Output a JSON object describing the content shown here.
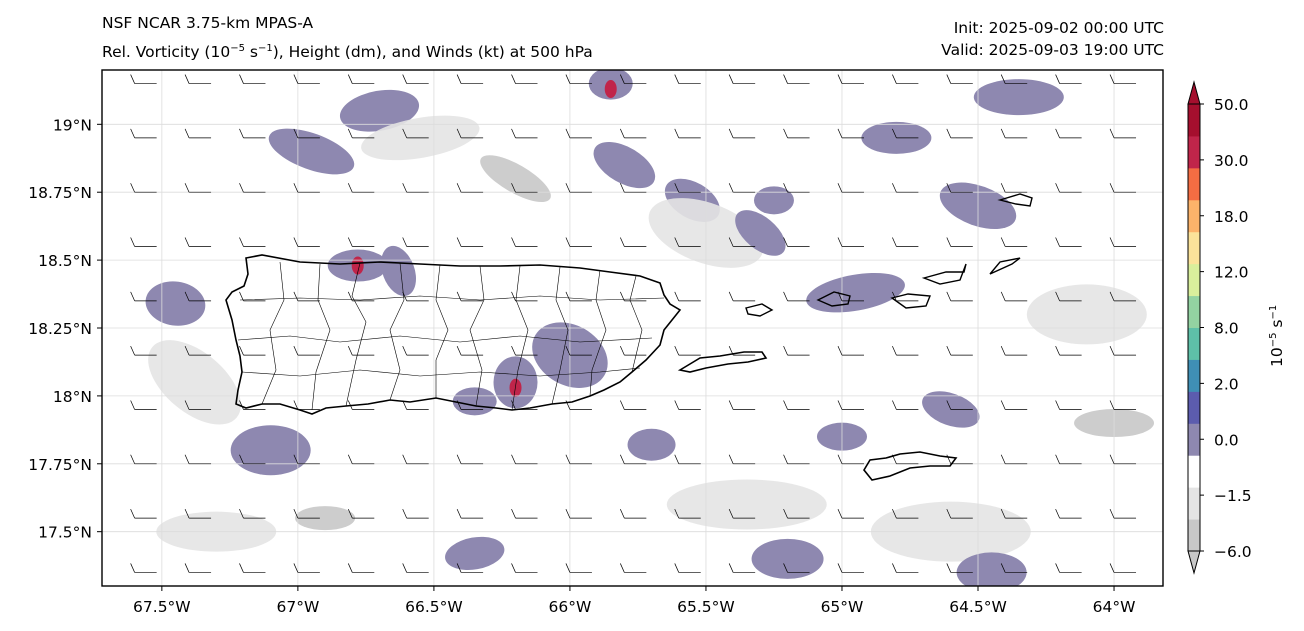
{
  "header": {
    "model": "NSF NCAR 3.75-km MPAS-A",
    "field_prefix": "Rel. Vorticity (10",
    "field_exp": "−5",
    "field_mid": " s",
    "field_exp2": "−1",
    "field_suffix": "), Height (dm), and Winds (kt) at 500 hPa",
    "init": "Init: 2025-09-02 00:00 UTC",
    "valid": "Valid: 2025-09-03 19:00 UTC"
  },
  "map": {
    "lon_range": [
      -67.72,
      -63.82
    ],
    "lat_range": [
      17.3,
      19.2
    ],
    "lon_ticks": [
      -67.5,
      -67.0,
      -66.5,
      -66.0,
      -65.5,
      -65.0,
      -64.5,
      -64.0
    ],
    "lon_tick_labels": [
      "67.5°W",
      "67°W",
      "66.5°W",
      "66°W",
      "65.5°W",
      "65°W",
      "64.5°W",
      "64°W"
    ],
    "lat_ticks": [
      19.0,
      18.75,
      18.5,
      18.25,
      18.0,
      17.75,
      17.5
    ],
    "lat_tick_labels": [
      "19°N",
      "18.75°N",
      "18.5°N",
      "18.25°N",
      "18°N",
      "17.75°N",
      "17.5°N"
    ],
    "gridlines": true,
    "wind_barb_spacing_deg": 0.2,
    "wind_direction": "westerly"
  },
  "colorbar": {
    "levels": [
      -6.0,
      -1.5,
      0.0,
      2.0,
      8.0,
      12.0,
      18.0,
      30.0,
      50.0
    ],
    "tick_labels": [
      "−6.0",
      "−1.5",
      "0.0",
      "2.0",
      "8.0",
      "12.0",
      "18.0",
      "30.0",
      "50.0"
    ],
    "colors": [
      "#c8c8c8",
      "#e4e4e4",
      "#ffffff",
      "#8e88b0",
      "#5c5cae",
      "#3f8fb5",
      "#5ec0a8",
      "#93d3a2",
      "#d9ef9c",
      "#fbe39a",
      "#fcb36a",
      "#f46d43",
      "#c0254a",
      "#a50f2e"
    ],
    "label": "10",
    "label_exp": "−5",
    "label_unit": " s",
    "label_exp2": "−1",
    "extend": "both"
  }
}
